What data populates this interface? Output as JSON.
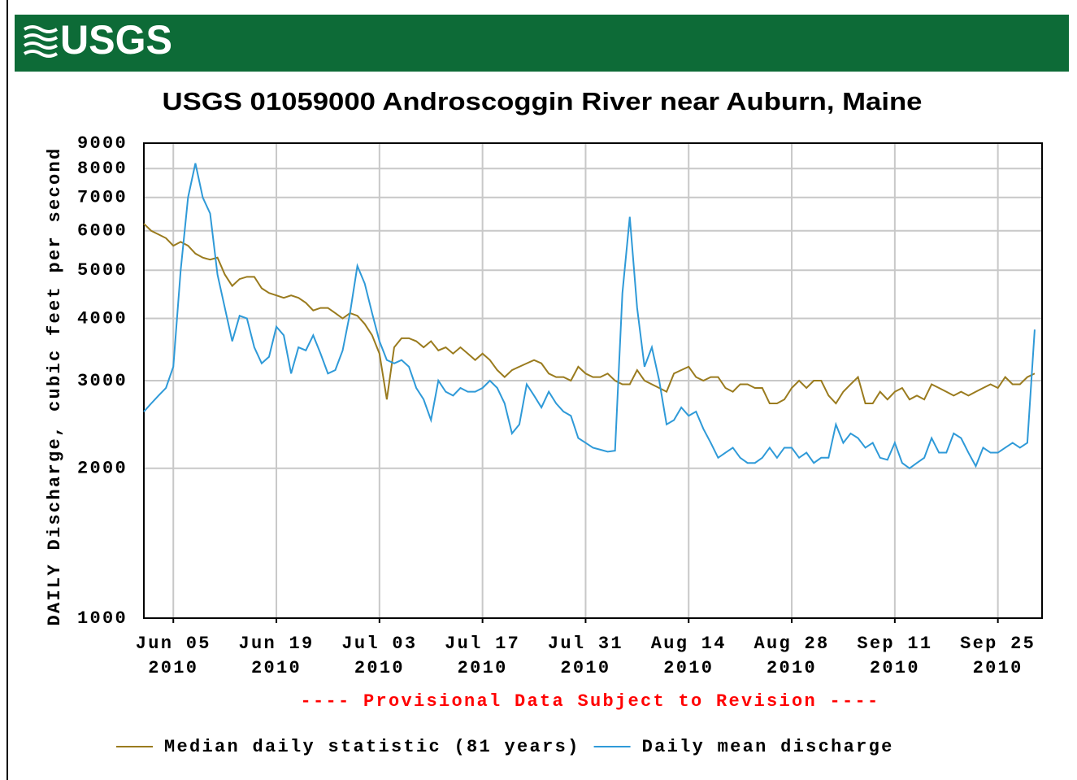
{
  "chart_data": {
    "type": "line",
    "logo": "USGS",
    "title": "USGS 01059000 Androscoggin River near Auburn, Maine",
    "y_label": "DAILY Discharge, cubic feet per second",
    "note": "---- Provisional Data Subject to Revision ----",
    "log_y": true,
    "grid": true,
    "legend": "bottom",
    "ylim": [
      1000,
      9000
    ],
    "yticks": [
      1000,
      2000,
      3000,
      4000,
      5000,
      6000,
      7000,
      8000,
      9000
    ],
    "xlim": [
      "2010-06-01",
      "2010-10-01"
    ],
    "xticks": [
      {
        "value": "2010-06-05",
        "label": [
          "Jun 05",
          "2010"
        ]
      },
      {
        "value": "2010-06-19",
        "label": [
          "Jun 19",
          "2010"
        ]
      },
      {
        "value": "2010-07-03",
        "label": [
          "Jul 03",
          "2010"
        ]
      },
      {
        "value": "2010-07-17",
        "label": [
          "Jul 17",
          "2010"
        ]
      },
      {
        "value": "2010-07-31",
        "label": [
          "Jul 31",
          "2010"
        ]
      },
      {
        "value": "2010-08-14",
        "label": [
          "Aug 14",
          "2010"
        ]
      },
      {
        "value": "2010-08-28",
        "label": [
          "Aug 28",
          "2010"
        ]
      },
      {
        "value": "2010-09-11",
        "label": [
          "Sep 11",
          "2010"
        ]
      },
      {
        "value": "2010-09-25",
        "label": [
          "Sep 25",
          "2010"
        ]
      }
    ],
    "x": [
      "2010-06-01",
      "2010-06-02",
      "2010-06-03",
      "2010-06-04",
      "2010-06-05",
      "2010-06-06",
      "2010-06-07",
      "2010-06-08",
      "2010-06-09",
      "2010-06-10",
      "2010-06-11",
      "2010-06-12",
      "2010-06-13",
      "2010-06-14",
      "2010-06-15",
      "2010-06-16",
      "2010-06-17",
      "2010-06-18",
      "2010-06-19",
      "2010-06-20",
      "2010-06-21",
      "2010-06-22",
      "2010-06-23",
      "2010-06-24",
      "2010-06-25",
      "2010-06-26",
      "2010-06-27",
      "2010-06-28",
      "2010-06-29",
      "2010-06-30",
      "2010-07-01",
      "2010-07-02",
      "2010-07-03",
      "2010-07-04",
      "2010-07-05",
      "2010-07-06",
      "2010-07-07",
      "2010-07-08",
      "2010-07-09",
      "2010-07-10",
      "2010-07-11",
      "2010-07-12",
      "2010-07-13",
      "2010-07-14",
      "2010-07-15",
      "2010-07-16",
      "2010-07-17",
      "2010-07-18",
      "2010-07-19",
      "2010-07-20",
      "2010-07-21",
      "2010-07-22",
      "2010-07-23",
      "2010-07-24",
      "2010-07-25",
      "2010-07-26",
      "2010-07-27",
      "2010-07-28",
      "2010-07-29",
      "2010-07-30",
      "2010-07-31",
      "2010-08-01",
      "2010-08-02",
      "2010-08-03",
      "2010-08-04",
      "2010-08-05",
      "2010-08-06",
      "2010-08-07",
      "2010-08-08",
      "2010-08-09",
      "2010-08-10",
      "2010-08-11",
      "2010-08-12",
      "2010-08-13",
      "2010-08-14",
      "2010-08-15",
      "2010-08-16",
      "2010-08-17",
      "2010-08-18",
      "2010-08-19",
      "2010-08-20",
      "2010-08-21",
      "2010-08-22",
      "2010-08-23",
      "2010-08-24",
      "2010-08-25",
      "2010-08-26",
      "2010-08-27",
      "2010-08-28",
      "2010-08-29",
      "2010-08-30",
      "2010-08-31",
      "2010-09-01",
      "2010-09-02",
      "2010-09-03",
      "2010-09-04",
      "2010-09-05",
      "2010-09-06",
      "2010-09-07",
      "2010-09-08",
      "2010-09-09",
      "2010-09-10",
      "2010-09-11",
      "2010-09-12",
      "2010-09-13",
      "2010-09-14",
      "2010-09-15",
      "2010-09-16",
      "2010-09-17",
      "2010-09-18",
      "2010-09-19",
      "2010-09-20",
      "2010-09-21",
      "2010-09-22",
      "2010-09-23",
      "2010-09-24",
      "2010-09-25",
      "2010-09-26",
      "2010-09-27",
      "2010-09-28",
      "2010-09-29",
      "2010-09-30"
    ],
    "series": [
      {
        "name": "Median daily statistic (81 years)",
        "color": "#9a7b1e",
        "values": [
          6200,
          6000,
          5900,
          5800,
          5600,
          5700,
          5600,
          5400,
          5300,
          5250,
          5300,
          4900,
          4650,
          4800,
          4850,
          4850,
          4600,
          4500,
          4450,
          4400,
          4450,
          4400,
          4300,
          4150,
          4200,
          4200,
          4100,
          4000,
          4100,
          4050,
          3900,
          3700,
          3400,
          2750,
          3500,
          3650,
          3650,
          3600,
          3500,
          3600,
          3450,
          3500,
          3400,
          3500,
          3400,
          3300,
          3400,
          3300,
          3150,
          3050,
          3150,
          3200,
          3250,
          3300,
          3250,
          3100,
          3050,
          3050,
          3000,
          3200,
          3100,
          3050,
          3050,
          3100,
          3000,
          2950,
          2950,
          3150,
          3000,
          2950,
          2900,
          2850,
          3100,
          3150,
          3200,
          3050,
          3000,
          3050,
          3050,
          2900,
          2850,
          2950,
          2950,
          2900,
          2900,
          2700,
          2700,
          2750,
          2900,
          3000,
          2900,
          3000,
          3000,
          2800,
          2700,
          2850,
          2950,
          3050,
          2700,
          2700,
          2850,
          2750,
          2850,
          2900,
          2750,
          2800,
          2750,
          2950,
          2900,
          2850,
          2800,
          2850,
          2800,
          2850,
          2900,
          2950,
          2900,
          3050,
          2950,
          2950,
          3050,
          3100
        ]
      },
      {
        "name": "Daily mean discharge",
        "color": "#2f9ad8",
        "values": [
          2600,
          2700,
          2800,
          2900,
          3200,
          5000,
          7000,
          8200,
          7000,
          6500,
          4900,
          4200,
          3600,
          4050,
          4000,
          3500,
          3250,
          3350,
          3850,
          3700,
          3100,
          3500,
          3450,
          3700,
          3400,
          3100,
          3150,
          3450,
          4100,
          5100,
          4700,
          4100,
          3600,
          3300,
          3250,
          3300,
          3200,
          2900,
          2750,
          2500,
          3000,
          2850,
          2800,
          2900,
          2850,
          2850,
          2900,
          3000,
          2900,
          2700,
          2350,
          2450,
          2950,
          2800,
          2650,
          2850,
          2700,
          2600,
          2550,
          2300,
          2250,
          2200,
          2180,
          2160,
          2170,
          4500,
          6400,
          4200,
          3200,
          3500,
          3000,
          2450,
          2500,
          2650,
          2550,
          2600,
          2400,
          2250,
          2100,
          2150,
          2200,
          2100,
          2050,
          2050,
          2100,
          2200,
          2100,
          2200,
          2200,
          2100,
          2150,
          2050,
          2100,
          2100,
          2450,
          2250,
          2350,
          2300,
          2200,
          2250,
          2100,
          2080,
          2250,
          2050,
          2000,
          2050,
          2100,
          2300,
          2150,
          2150,
          2350,
          2300,
          2150,
          2020,
          2200,
          2150,
          2150,
          2200,
          2250,
          2200,
          2250,
          3800
        ]
      }
    ]
  }
}
